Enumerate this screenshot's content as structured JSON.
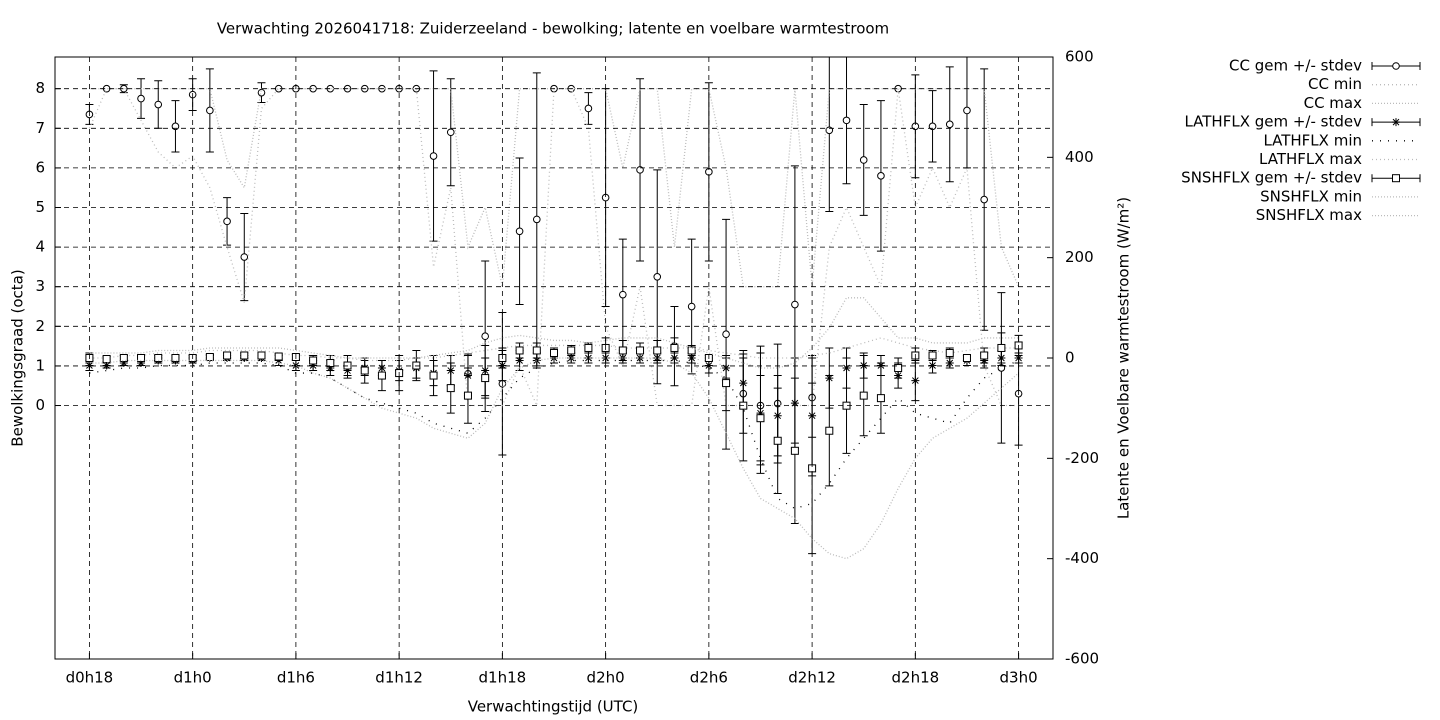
{
  "chart_data": {
    "type": "errorbar",
    "title": "Verwachting 2026041718: Zuiderzeeland - bewolking; latente en voelbare warmtestroom",
    "xlabel": "Verwachtingstijd (UTC)",
    "ylabel": "Bewolkingsgraad (octa)",
    "y2label": "Latente en Voelbare warmtestroom (W/m²)",
    "x": [
      18,
      19,
      20,
      21,
      22,
      23,
      24,
      25,
      26,
      27,
      28,
      29,
      30,
      31,
      32,
      33,
      34,
      35,
      36,
      37,
      38,
      39,
      40,
      41,
      42,
      43,
      44,
      45,
      46,
      47,
      48,
      49,
      50,
      51,
      52,
      53,
      54,
      55,
      56,
      57,
      58,
      59,
      60,
      61,
      62,
      63,
      64,
      65,
      66,
      67,
      68,
      69,
      70,
      71,
      72
    ],
    "xlim": [
      16,
      74
    ],
    "xticks": [
      {
        "value": 18,
        "label": "d0h18"
      },
      {
        "value": 24,
        "label": "d1h0"
      },
      {
        "value": 30,
        "label": "d1h6"
      },
      {
        "value": 36,
        "label": "d1h12"
      },
      {
        "value": 42,
        "label": "d1h18"
      },
      {
        "value": 48,
        "label": "d2h0"
      },
      {
        "value": 54,
        "label": "d2h6"
      },
      {
        "value": 60,
        "label": "d2h12"
      },
      {
        "value": 66,
        "label": "d2h18"
      },
      {
        "value": 72,
        "label": "d3h0"
      }
    ],
    "ylim": [
      -6.4,
      8.8
    ],
    "yticks": [
      0,
      1,
      2,
      3,
      4,
      5,
      6,
      7,
      8
    ],
    "y2lim": [
      -600,
      600
    ],
    "y2ticks": [
      -600,
      -400,
      -200,
      0,
      200,
      400,
      600
    ],
    "grid": true,
    "legend": "top-right",
    "series": [
      {
        "name": "CC gem +/- stdev",
        "color": "#000000",
        "marker": "circle",
        "values": [
          7.35,
          8,
          8,
          7.75,
          7.6,
          7.05,
          7.85,
          7.45,
          4.65,
          3.75,
          7.9,
          8,
          8,
          8,
          8,
          8,
          8,
          8,
          8,
          8,
          6.3,
          6.9,
          0.8,
          1.75,
          0.55,
          4.4,
          4.7,
          8,
          8,
          7.5,
          5.25,
          2.8,
          5.95,
          3.25,
          1.5,
          2.5,
          5.9,
          1.8,
          0.3,
          0,
          0.05,
          2.55,
          0.2,
          6.95,
          7.2,
          6.2,
          5.8,
          8,
          7.05,
          7.05,
          7.1,
          7.45,
          5.2,
          0.95,
          0.3
        ],
        "errors": [
          0.25,
          0,
          0.1,
          0.5,
          0.6,
          0.65,
          0.4,
          1.05,
          0.6,
          1.1,
          0.25,
          0,
          0,
          0,
          0,
          0,
          0,
          0,
          0,
          0,
          2.15,
          1.35,
          0.5,
          1.9,
          1.8,
          1.85,
          3.7,
          0,
          0,
          0.4,
          2.75,
          1.4,
          2.3,
          2.7,
          1,
          1.7,
          2.25,
          2.9,
          1,
          1.5,
          1.5,
          3.5,
          1,
          2.05,
          1.6,
          1.4,
          1.9,
          0,
          1.3,
          0.9,
          1.45,
          1.45,
          3.3,
          1.9,
          1.3
        ]
      },
      {
        "name": "CC min",
        "color": "#bbbbbb",
        "dash": "1 3",
        "values": [
          7,
          8,
          8,
          7.2,
          6.4,
          6,
          6.3,
          5.5,
          4,
          2.6,
          7.5,
          8,
          8,
          8,
          8,
          8,
          8,
          8,
          8,
          8,
          3.5,
          5.5,
          0,
          0,
          0,
          1,
          0,
          8,
          8,
          7,
          2,
          1,
          3,
          0,
          0,
          0,
          3,
          0,
          0,
          0,
          0,
          0,
          0,
          4,
          5,
          4,
          3,
          8,
          5,
          6,
          5,
          6,
          1,
          0,
          0
        ]
      },
      {
        "name": "CC max",
        "color": "#bbbbbb",
        "dash": "1 2",
        "values": [
          8,
          8,
          8,
          8,
          8,
          8,
          8,
          8,
          6.2,
          5.5,
          8,
          8,
          8,
          8,
          8,
          8,
          8,
          8,
          8,
          8,
          8,
          8,
          4,
          5,
          3,
          8,
          8,
          8,
          8,
          8,
          8,
          6,
          8,
          8,
          4,
          8,
          8,
          6,
          3,
          3,
          3,
          8,
          3,
          8,
          8,
          8,
          8,
          8,
          8,
          8,
          8,
          8,
          8,
          4,
          3
        ]
      },
      {
        "name": "LATHFLX gem +/- stdev",
        "color": "#000000",
        "marker": "star",
        "axis": "y2",
        "values": [
          -15,
          -15,
          -10,
          -10,
          -5,
          -5,
          -5,
          0,
          0,
          0,
          0,
          -5,
          -15,
          -15,
          -20,
          -25,
          -20,
          -20,
          -25,
          -20,
          -30,
          -25,
          -35,
          -25,
          -15,
          -5,
          -5,
          0,
          0,
          0,
          0,
          0,
          0,
          0,
          0,
          0,
          -15,
          -20,
          -50,
          -110,
          -115,
          -90,
          -115,
          -40,
          -20,
          -15,
          -15,
          -35,
          -45,
          -15,
          -10,
          -5,
          -5,
          0,
          0
        ],
        "errors": [
          10,
          5,
          5,
          5,
          5,
          5,
          5,
          5,
          5,
          5,
          5,
          10,
          10,
          10,
          15,
          15,
          15,
          15,
          20,
          20,
          25,
          30,
          40,
          50,
          30,
          20,
          15,
          10,
          10,
          10,
          10,
          10,
          10,
          10,
          10,
          10,
          15,
          20,
          50,
          120,
          80,
          90,
          120,
          60,
          40,
          25,
          20,
          25,
          40,
          15,
          10,
          10,
          15,
          15,
          10
        ]
      },
      {
        "name": "LATHFLX min",
        "color": "#000000",
        "dash": "1 7",
        "axis": "y2",
        "values": [
          -30,
          -25,
          -20,
          -20,
          -15,
          -15,
          -15,
          -10,
          -10,
          -10,
          -10,
          -15,
          -30,
          -30,
          -40,
          -60,
          -80,
          -90,
          -100,
          -110,
          -130,
          -140,
          -150,
          -120,
          -80,
          -40,
          -20,
          -10,
          -5,
          -5,
          -5,
          -5,
          -5,
          -5,
          -5,
          -10,
          -20,
          -40,
          -100,
          -200,
          -280,
          -300,
          -290,
          -250,
          -200,
          -160,
          -120,
          -80,
          -110,
          -120,
          -130,
          -80,
          -40,
          -20,
          -5
        ]
      },
      {
        "name": "LATHFLX max",
        "color": "#bbbbbb",
        "dash": "1 3",
        "axis": "y2",
        "values": [
          0,
          0,
          5,
          5,
          10,
          10,
          10,
          15,
          15,
          15,
          15,
          10,
          5,
          5,
          0,
          0,
          -5,
          -5,
          -5,
          0,
          0,
          5,
          10,
          15,
          20,
          25,
          25,
          25,
          25,
          25,
          25,
          20,
          20,
          20,
          20,
          20,
          15,
          10,
          5,
          0,
          0,
          0,
          5,
          10,
          20,
          30,
          40,
          30,
          20,
          15,
          10,
          15,
          20,
          20,
          20
        ]
      },
      {
        "name": "SNSHFLX gem +/- stdev",
        "color": "#000000",
        "marker": "square",
        "axis": "y2",
        "values": [
          0,
          -2,
          0,
          0,
          0,
          0,
          0,
          2,
          5,
          5,
          5,
          3,
          2,
          -5,
          -10,
          -15,
          -25,
          -35,
          -30,
          -15,
          -35,
          -60,
          -75,
          -40,
          0,
          15,
          15,
          10,
          15,
          20,
          20,
          15,
          15,
          15,
          20,
          15,
          0,
          -50,
          -95,
          -120,
          -165,
          -185,
          -220,
          -145,
          -95,
          -75,
          -80,
          -20,
          5,
          5,
          10,
          0,
          5,
          20,
          25
        ],
        "errors": [
          10,
          5,
          5,
          5,
          5,
          5,
          5,
          5,
          5,
          5,
          5,
          5,
          5,
          10,
          15,
          20,
          25,
          30,
          35,
          30,
          40,
          50,
          55,
          40,
          20,
          15,
          15,
          10,
          10,
          10,
          20,
          20,
          15,
          20,
          20,
          10,
          5,
          55,
          110,
          85,
          105,
          145,
          170,
          110,
          95,
          80,
          70,
          20,
          15,
          10,
          10,
          5,
          15,
          30,
          20
        ]
      },
      {
        "name": "SNSHFLX min",
        "color": "#bbbbbb",
        "dash": "1 2",
        "axis": "y2",
        "values": [
          -10,
          -10,
          -5,
          -5,
          -5,
          -5,
          -5,
          -5,
          -5,
          -5,
          -5,
          -10,
          -15,
          -30,
          -40,
          -60,
          -80,
          -100,
          -110,
          -120,
          -140,
          -150,
          -160,
          -130,
          -60,
          -20,
          -5,
          0,
          0,
          0,
          0,
          0,
          0,
          0,
          -10,
          -30,
          -80,
          -150,
          -220,
          -280,
          -300,
          -320,
          -360,
          -390,
          -400,
          -380,
          -330,
          -260,
          -200,
          -160,
          -140,
          -120,
          -90,
          -60,
          -30
        ]
      },
      {
        "name": "SNSHFLX max",
        "color": "#bbbbbb",
        "dash": "1 2",
        "axis": "y2",
        "values": [
          10,
          10,
          10,
          10,
          15,
          15,
          15,
          20,
          20,
          20,
          20,
          20,
          15,
          10,
          5,
          0,
          0,
          0,
          0,
          0,
          5,
          10,
          15,
          30,
          40,
          45,
          40,
          35,
          35,
          30,
          35,
          40,
          40,
          40,
          30,
          20,
          10,
          0,
          -10,
          -20,
          -20,
          -10,
          20,
          60,
          120,
          120,
          80,
          40,
          40,
          30,
          30,
          30,
          40,
          40,
          40
        ]
      }
    ]
  }
}
